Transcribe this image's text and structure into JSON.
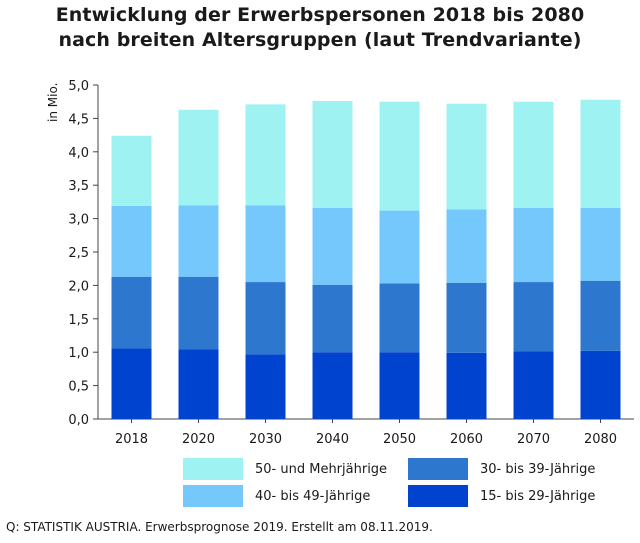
{
  "title": {
    "line1": "Entwicklung der Erwerbspersonen 2018 bis 2080",
    "line2": "nach breiten Altersgruppen (laut Trendvariante)"
  },
  "source": "Q: STATISTIK AUSTRIA. Erwerbsprognose 2019. Erstellt am 08.11.2019.",
  "colors": {
    "s15_29": "#0043cf",
    "s30_39": "#2e77cf",
    "s40_49": "#75c8fb",
    "s50_plus": "#9ff2f2"
  },
  "chart_data": {
    "type": "bar",
    "stacked": true,
    "title": "Entwicklung der Erwerbspersonen 2018 bis 2080 nach breiten Altersgruppen (laut Trendvariante)",
    "ylabel": "in Mio.",
    "ylim": [
      0,
      5
    ],
    "yticks": [
      "0,0",
      "0,5",
      "1,0",
      "1,5",
      "2,0",
      "2,5",
      "3,0",
      "3,5",
      "4,0",
      "4,5",
      "5,0"
    ],
    "grid": false,
    "legend_position": "bottom",
    "categories": [
      "2018",
      "2020",
      "2030",
      "2040",
      "2050",
      "2060",
      "2070",
      "2080"
    ],
    "series": [
      {
        "name": "15- bis 29-Jährige",
        "color": "#0043cf",
        "values": [
          1.06,
          1.04,
          0.97,
          1.0,
          1.0,
          0.99,
          1.01,
          1.02
        ]
      },
      {
        "name": "30- bis 39-Jährige",
        "color": "#2e77cf",
        "values": [
          1.07,
          1.09,
          1.08,
          1.01,
          1.03,
          1.05,
          1.04,
          1.05
        ]
      },
      {
        "name": "40- bis 49-Jährige",
        "color": "#75c8fb",
        "values": [
          1.06,
          1.07,
          1.15,
          1.15,
          1.09,
          1.1,
          1.11,
          1.09
        ]
      },
      {
        "name": "50- und Mehrjährige",
        "color": "#9ff2f2",
        "values": [
          1.05,
          1.43,
          1.51,
          1.6,
          1.63,
          1.58,
          1.59,
          1.62
        ]
      }
    ]
  }
}
